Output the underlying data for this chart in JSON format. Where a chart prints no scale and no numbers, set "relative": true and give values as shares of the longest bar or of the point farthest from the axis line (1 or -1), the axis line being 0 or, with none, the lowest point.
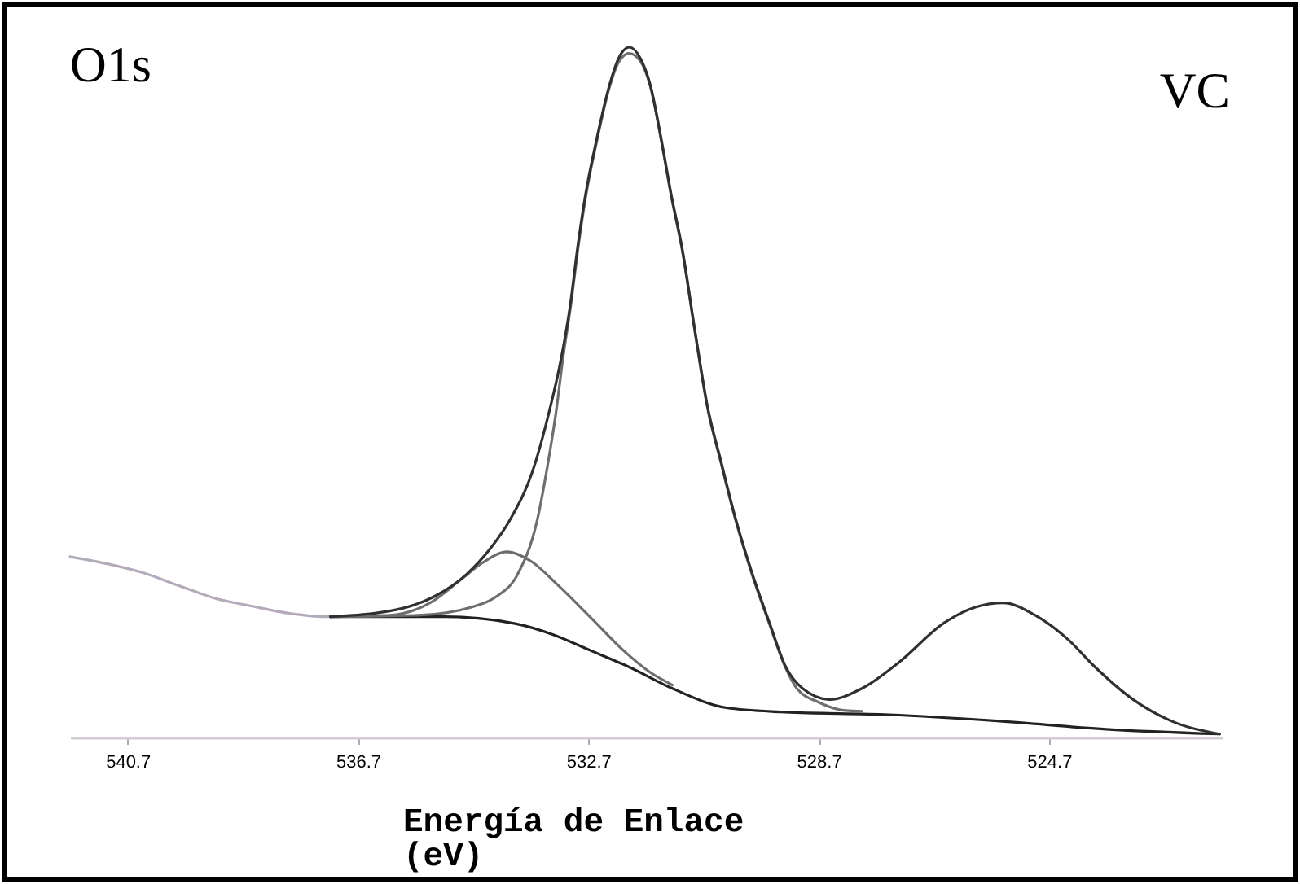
{
  "chart_data": {
    "type": "line",
    "relative": true,
    "annotations": [
      "O1s",
      "VC"
    ],
    "xlabel": "Energía de Enlace\n(eV)",
    "xlim": [
      541.7,
      521.7
    ],
    "xticks": [
      540.7,
      536.7,
      532.7,
      528.7,
      524.7
    ],
    "series": [
      {
        "color": "#b4aabb",
        "x": [
          541.7,
          541.02,
          540.45,
          539.81,
          539.16,
          538.59,
          537.91,
          537.27,
          537.18
        ],
        "values": [
          0.262,
          0.251,
          0.239,
          0.22,
          0.201,
          0.191,
          0.18,
          0.175,
          0.175
        ]
      },
      {
        "color": "#222222",
        "x": [
          537.18,
          535.2,
          533.97,
          533.31,
          532.66,
          531.99,
          531.24,
          530.3,
          529.36,
          527.48,
          525.6,
          523.71,
          521.74
        ],
        "values": [
          0.175,
          0.175,
          0.165,
          0.149,
          0.126,
          0.102,
          0.071,
          0.043,
          0.037,
          0.033,
          0.024,
          0.012,
          0.005
        ]
      },
      {
        "color": "#6e6e6e",
        "x": [
          537.18,
          536.14,
          535.43,
          534.91,
          534.54,
          534.11,
          533.69,
          533.22,
          532.65,
          532.09,
          531.62,
          531.24
        ],
        "values": [
          0.175,
          0.177,
          0.196,
          0.229,
          0.253,
          0.269,
          0.255,
          0.22,
          0.173,
          0.126,
          0.094,
          0.076
        ]
      },
      {
        "color": "#6e6e6e",
        "x": [
          537.18,
          535.66,
          534.72,
          534.3,
          533.93,
          533.59,
          533.41,
          533.26,
          533.14,
          533.0,
          532.88,
          532.74,
          532.55,
          532.33,
          532.17,
          531.99,
          531.79,
          531.62,
          531.43,
          531.26,
          531.07,
          530.85,
          530.63,
          530.4,
          530.16,
          529.88,
          529.55,
          529.27,
          529.08,
          528.7,
          528.23,
          527.95
        ],
        "values": [
          0.175,
          0.177,
          0.189,
          0.204,
          0.236,
          0.314,
          0.393,
          0.472,
          0.55,
          0.629,
          0.708,
          0.786,
          0.865,
          0.943,
          0.979,
          0.991,
          0.979,
          0.942,
          0.863,
          0.784,
          0.706,
          0.588,
          0.477,
          0.399,
          0.32,
          0.242,
          0.163,
          0.1,
          0.071,
          0.051,
          0.039,
          0.038
        ]
      },
      {
        "color": "#303030",
        "x": [
          537.18,
          536.04,
          535.38,
          534.82,
          534.39,
          534.07,
          533.64,
          533.38,
          533.17,
          533.01,
          532.89,
          532.75,
          532.56,
          532.34,
          532.18,
          531.99,
          531.79,
          531.62,
          531.43,
          531.26,
          531.07,
          530.85,
          530.63,
          530.4,
          530.16,
          529.88,
          529.55,
          529.27,
          528.98,
          528.51,
          527.95,
          527.29,
          526.54,
          525.97,
          525.5,
          524.94,
          524.37,
          523.9,
          523.24,
          522.58,
          521.74
        ],
        "values": [
          0.175,
          0.185,
          0.204,
          0.236,
          0.275,
          0.314,
          0.393,
          0.472,
          0.55,
          0.629,
          0.708,
          0.786,
          0.865,
          0.943,
          0.983,
          1.0,
          0.983,
          0.944,
          0.865,
          0.786,
          0.708,
          0.59,
          0.479,
          0.401,
          0.322,
          0.244,
          0.165,
          0.102,
          0.071,
          0.055,
          0.071,
          0.11,
          0.165,
          0.189,
          0.195,
          0.177,
          0.142,
          0.102,
          0.055,
          0.024,
          0.005
        ]
      }
    ]
  }
}
